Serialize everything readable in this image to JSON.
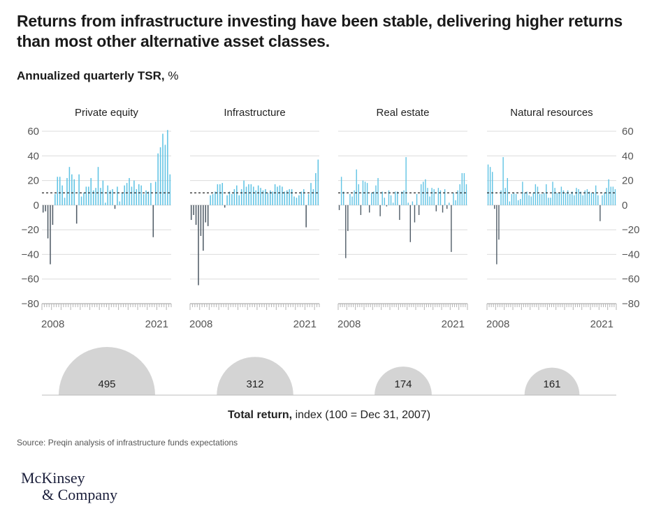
{
  "title": "Returns from infrastructure investing have been stable, delivering higher returns than most other alternative asset classes.",
  "subtitle_bold": "Annualized quarterly TSR,",
  "subtitle_rest": " %",
  "source": "Source: Preqin analysis of infrastructure funds expectations",
  "logo_line1": "McKinsey",
  "logo_line2": "& Company",
  "chart_data": {
    "type": "bar",
    "ylabel": "Annualized quarterly TSR, %",
    "ylim": [
      -80,
      60
    ],
    "yticks": [
      60,
      40,
      20,
      0,
      -20,
      -40,
      -60,
      -80
    ],
    "ytick_labels": [
      "60",
      "40",
      "20",
      "0",
      "−20",
      "−40",
      "−60",
      "−80"
    ],
    "x_start_label": "2008",
    "x_end_label": "2021",
    "reference_line": 10,
    "colors": {
      "positive": "#5fc3e4",
      "negative": "#4f5b66",
      "grid": "#dcdcdc",
      "bubble": "#d4d4d4",
      "axis": "#9a9a9a"
    },
    "series": [
      {
        "name": "Private equity",
        "values": [
          -6,
          -5,
          -27,
          -48,
          -16,
          9,
          23,
          23,
          16,
          6,
          22,
          31,
          25,
          21,
          -15,
          25,
          7,
          10,
          15,
          15,
          22,
          12,
          14,
          31,
          14,
          20,
          2,
          16,
          12,
          13,
          -3,
          15,
          3,
          10,
          16,
          18,
          22,
          15,
          20,
          13,
          17,
          16,
          9,
          12,
          11,
          18,
          -26,
          19,
          42,
          47,
          58,
          49,
          61,
          25
        ],
        "total_return": 495
      },
      {
        "name": "Infrastructure",
        "values": [
          -12,
          -8,
          -16,
          -65,
          -25,
          -37,
          -14,
          -17,
          8,
          9,
          11,
          17,
          17,
          18,
          -2,
          8,
          11,
          9,
          13,
          16,
          8,
          13,
          20,
          15,
          17,
          17,
          15,
          12,
          16,
          14,
          12,
          13,
          10,
          12,
          11,
          17,
          15,
          16,
          15,
          11,
          12,
          13,
          13,
          7,
          6,
          8,
          11,
          13,
          -18,
          9,
          18,
          13,
          26,
          37
        ],
        "total_return": 312
      },
      {
        "name": "Real estate",
        "values": [
          -4,
          23,
          11,
          -43,
          -21,
          9,
          7,
          12,
          29,
          17,
          -8,
          20,
          19,
          18,
          -6,
          10,
          11,
          16,
          22,
          -9,
          11,
          6,
          -1,
          12,
          8,
          2,
          11,
          11,
          -12,
          11,
          12,
          39,
          2,
          -30,
          3,
          -14,
          9,
          -8,
          17,
          19,
          21,
          14,
          7,
          14,
          13,
          -5,
          14,
          12,
          -6,
          13,
          -3,
          2,
          -38,
          10,
          4,
          12,
          17,
          26,
          26,
          17
        ],
        "total_return": 174
      },
      {
        "name": "Natural resources",
        "values": [
          33,
          31,
          27,
          -3,
          -48,
          -28,
          12,
          39,
          14,
          22,
          3,
          9,
          10,
          9,
          4,
          5,
          19,
          10,
          11,
          8,
          7,
          10,
          17,
          15,
          9,
          9,
          10,
          17,
          6,
          6,
          19,
          14,
          10,
          10,
          15,
          12,
          10,
          12,
          9,
          11,
          8,
          14,
          13,
          11,
          8,
          12,
          13,
          11,
          10,
          10,
          16,
          8,
          -13,
          8,
          10,
          14,
          21,
          15,
          15,
          13
        ],
        "total_return": 161
      }
    ],
    "bubble_axis_label_bold": "Total return,",
    "bubble_axis_label_rest": " index (100 = Dec 31, 2007)"
  }
}
